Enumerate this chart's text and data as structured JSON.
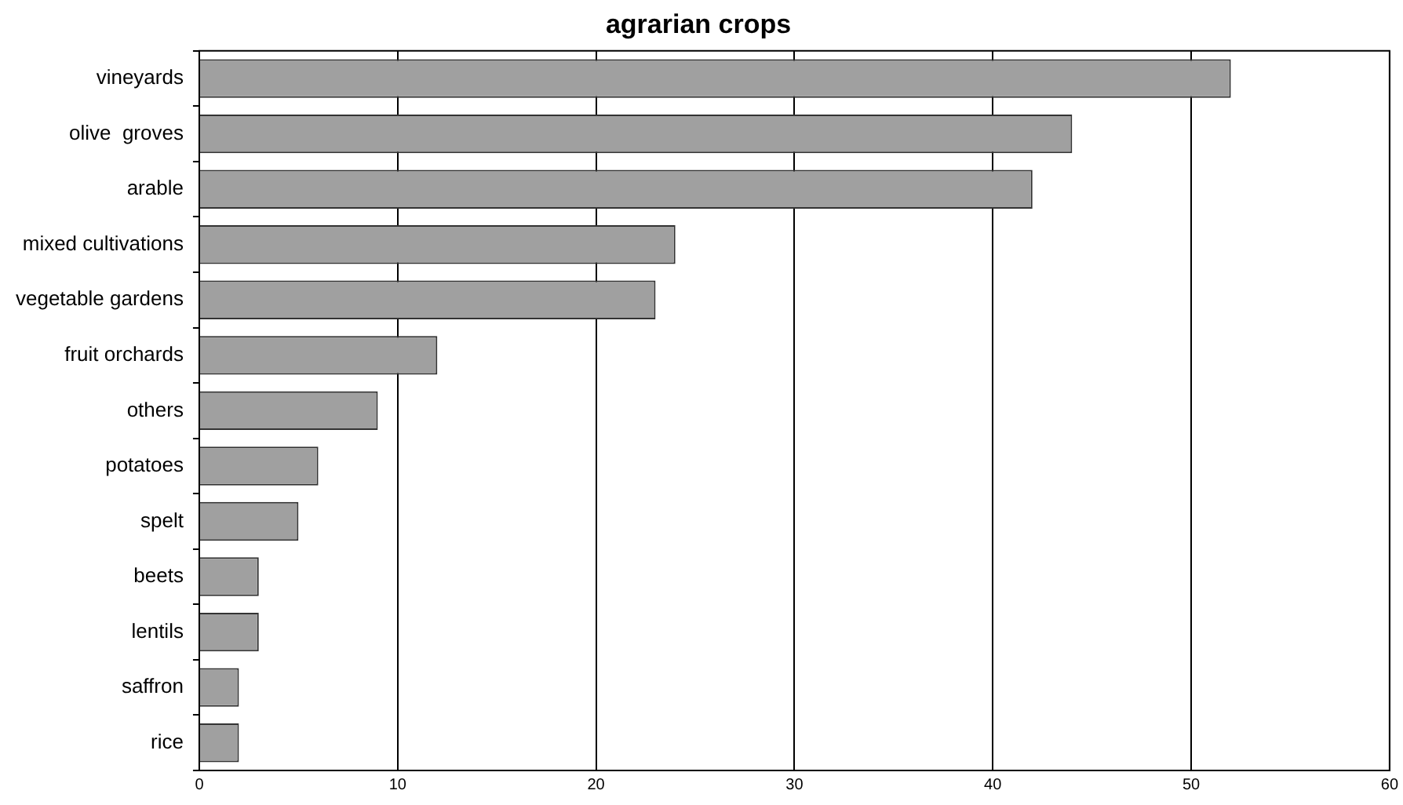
{
  "chart_data": {
    "type": "bar",
    "orientation": "horizontal",
    "title": "agrarian crops",
    "categories": [
      "vineyards",
      "olive  groves",
      "arable",
      "mixed cultivations",
      "vegetable gardens",
      "fruit orchards",
      "others",
      "potatoes",
      "spelt",
      "beets",
      "lentils",
      "saffron",
      "rice"
    ],
    "values": [
      52,
      44,
      42,
      24,
      23,
      12,
      9,
      6,
      5,
      3,
      3,
      2,
      2
    ],
    "color": "#a0a0a0",
    "xlim": [
      0,
      60
    ],
    "xticks": [
      0,
      10,
      20,
      30,
      40,
      50,
      60
    ],
    "grid": "x",
    "legend": false
  }
}
